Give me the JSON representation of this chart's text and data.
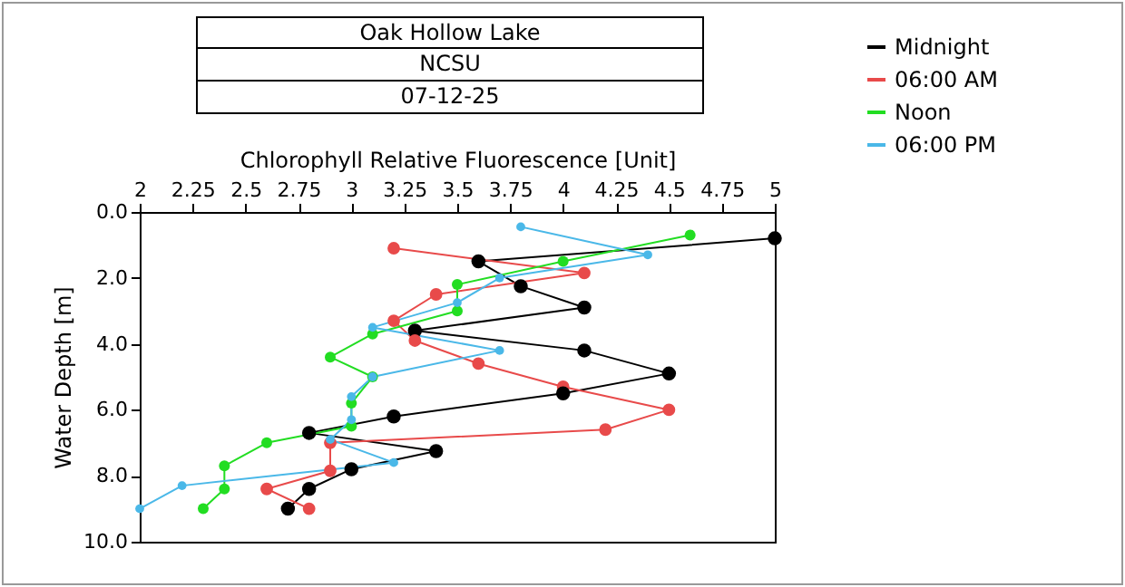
{
  "chart_data": {
    "type": "line",
    "title": "Oak Hollow Lake",
    "subtitle": "NCSU",
    "annotations": [
      "07-12-25"
    ],
    "xlabel": "Chlorophyll Relative Fluorescence [Unit]",
    "ylabel": "Water Depth [m]",
    "xlim": [
      2,
      5
    ],
    "xticks": [
      2,
      2.25,
      2.5,
      2.75,
      3,
      3.25,
      3.5,
      3.75,
      4,
      4.25,
      4.5,
      4.75,
      5
    ],
    "ylim": [
      10,
      0
    ],
    "yticks": [
      {
        "value": 0,
        "label": "0.0"
      },
      {
        "value": 2,
        "label": "2.0"
      },
      {
        "value": 4,
        "label": "4.0"
      },
      {
        "value": 6,
        "label": "6.0"
      },
      {
        "value": 8,
        "label": "8.0"
      },
      {
        "value": 10,
        "label": "10.0"
      }
    ],
    "grid": false,
    "legend": "top right",
    "marker": "circle",
    "line_style": "solid",
    "series": [
      {
        "name": "Midnight",
        "color": "#000000",
        "x": [
          5.0,
          3.6,
          3.8,
          4.1,
          3.3,
          4.1,
          4.5,
          4.0,
          3.2,
          2.8,
          3.4,
          3.0,
          2.8,
          2.7
        ],
        "values": [
          0.8,
          1.5,
          2.25,
          2.9,
          3.6,
          4.2,
          4.9,
          5.5,
          6.2,
          6.7,
          7.25,
          7.8,
          8.4,
          9.0
        ]
      },
      {
        "name": "06:00 AM",
        "color": "#e84a4a",
        "x": [
          3.2,
          4.1,
          3.4,
          3.2,
          3.3,
          3.6,
          4.0,
          4.5,
          4.2,
          2.9,
          2.9,
          2.6,
          2.8
        ],
        "values": [
          1.1,
          1.85,
          2.5,
          3.3,
          3.9,
          4.6,
          5.3,
          6.0,
          6.6,
          7.0,
          7.85,
          8.4,
          9.0
        ]
      },
      {
        "name": "Noon",
        "color": "#22dd22",
        "x": [
          4.6,
          4.0,
          3.5,
          3.5,
          3.1,
          2.9,
          3.1,
          3.0,
          3.0,
          2.6,
          2.4,
          2.4,
          2.3
        ],
        "values": [
          0.7,
          1.5,
          2.2,
          3.0,
          3.7,
          4.4,
          5.0,
          5.8,
          6.5,
          7.0,
          7.7,
          8.4,
          9.0
        ]
      },
      {
        "name": "06:00 PM",
        "color": "#4ab8e8",
        "x": [
          3.8,
          4.4,
          3.7,
          3.5,
          3.1,
          3.7,
          3.1,
          3.0,
          3.0,
          2.9,
          3.2,
          2.2,
          2.0
        ],
        "values": [
          0.45,
          1.3,
          2.0,
          2.75,
          3.5,
          4.2,
          5.0,
          5.6,
          6.3,
          6.9,
          7.6,
          8.3,
          9.0
        ]
      }
    ]
  }
}
